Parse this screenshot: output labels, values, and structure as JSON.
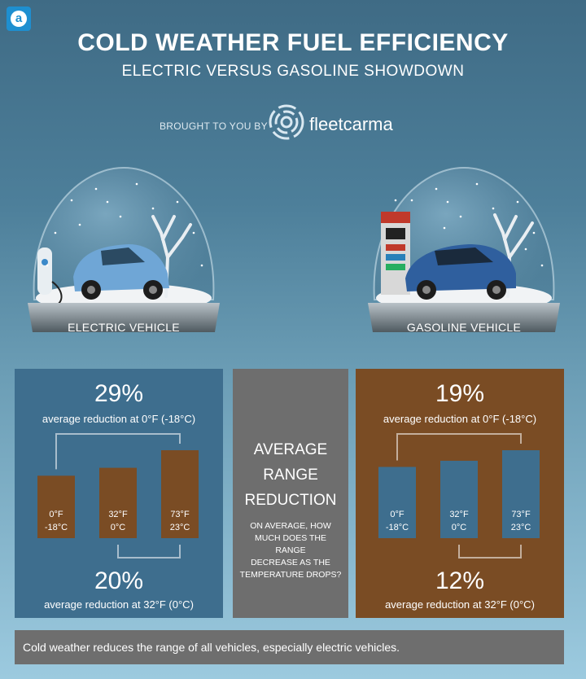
{
  "header": {
    "corner_logo": "a",
    "title": "COLD WEATHER FUEL EFFICIENCY",
    "subtitle": "ELECTRIC VERSUS GASOLINE SHOWDOWN",
    "brought_by": "BROUGHT TO YOU BY",
    "brand": "fleetcarma"
  },
  "globes": {
    "electric_label": "ELECTRIC VEHICLE",
    "gasoline_label": "GASOLINE VEHICLE"
  },
  "middle": {
    "title_lines": [
      "AVERAGE",
      "RANGE",
      "REDUCTION"
    ],
    "body_lines": [
      "ON AVERAGE, HOW",
      "MUCH DOES THE RANGE",
      "DECREASE AS THE",
      "TEMPERATURE DROPS?"
    ]
  },
  "footer": {
    "text": "Cold weather reduces the range of all vehicles, especially electric vehicles."
  },
  "colors": {
    "ev_panel": "#3e6e8e",
    "gas_panel": "#7a4c24",
    "mid_panel": "#6e6e6e",
    "ev_bar": "#7a4c24",
    "gas_bar": "#3e6e8e"
  },
  "chart_data": [
    {
      "type": "bar",
      "panel": "electric",
      "categories": [
        "0°F\n-18°C",
        "32°F\n0°C",
        "73°F\n23°C"
      ],
      "values": [
        71,
        80,
        100
      ],
      "top_annotation": {
        "value": "29%",
        "text": "average reduction at 0°F (-18°C)"
      },
      "bottom_annotation": {
        "value": "20%",
        "text": "average reduction at 32°F (0°C)"
      }
    },
    {
      "type": "bar",
      "panel": "gasoline",
      "categories": [
        "0°F\n-18°C",
        "32°F\n0°C",
        "73°F\n23°C"
      ],
      "values": [
        81,
        88,
        100
      ],
      "top_annotation": {
        "value": "19%",
        "text": "average reduction at 0°F (-18°C)"
      },
      "bottom_annotation": {
        "value": "12%",
        "text": "average reduction at 32°F (0°C)"
      }
    }
  ]
}
